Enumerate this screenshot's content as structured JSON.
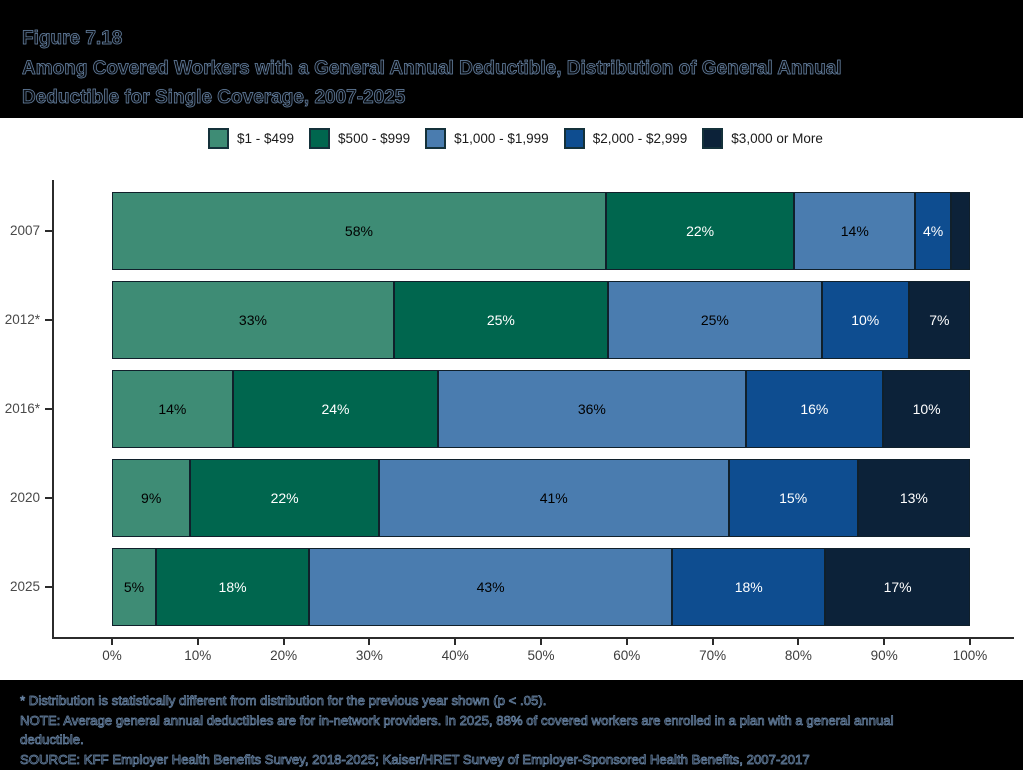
{
  "header": {
    "figure_label": "Figure 7.18",
    "title_lines": [
      "Among Covered Workers with a General Annual Deductible, Distribution of General Annual",
      "Deductible for Single Coverage, 2007-2025"
    ]
  },
  "legend": {
    "items": [
      {
        "label": "$1 - $499",
        "color": "#3E8C75"
      },
      {
        "label": "$500 - $999",
        "color": "#00664E"
      },
      {
        "label": "$1,000 - $1,999",
        "color": "#4A7CAF"
      },
      {
        "label": "$2,000 - $2,999",
        "color": "#0E4D90"
      },
      {
        "label": "$3,000 or More",
        "color": "#0C2239"
      }
    ]
  },
  "chart_data": {
    "type": "bar",
    "orientation": "horizontal",
    "stacked": true,
    "title": "Among Covered Workers with a General Annual Deductible, Distribution of General Annual Deductible for Single Coverage, 2007-2025",
    "categories": [
      "2007",
      "2012*",
      "2016*",
      "2020",
      "2025"
    ],
    "series": [
      {
        "name": "$1 - $499",
        "color": "#3E8C75",
        "label_color": "#000000",
        "values": [
          58,
          33,
          14,
          9,
          5
        ]
      },
      {
        "name": "$500 - $999",
        "color": "#00664E",
        "label_color": "#ffffff",
        "values": [
          22,
          25,
          24,
          22,
          18
        ]
      },
      {
        "name": "$1,000 - $1,999",
        "color": "#4A7CAF",
        "label_color": "#000000",
        "values": [
          14,
          25,
          36,
          41,
          43
        ]
      },
      {
        "name": "$2,000 - $2,999",
        "color": "#0E4D90",
        "label_color": "#ffffff",
        "values": [
          4,
          10,
          16,
          15,
          18
        ]
      },
      {
        "name": "$3,000 or More",
        "color": "#0C2239",
        "label_color": "#ffffff",
        "values": [
          2,
          7,
          10,
          13,
          17
        ]
      }
    ],
    "bar_labels": [
      [
        "58%",
        "22%",
        "14%",
        "4%",
        ""
      ],
      [
        "33%",
        "25%",
        "25%",
        "10%",
        "7%"
      ],
      [
        "14%",
        "24%",
        "36%",
        "16%",
        "10%"
      ],
      [
        "9%",
        "22%",
        "41%",
        "15%",
        "13%"
      ],
      [
        "5%",
        "18%",
        "43%",
        "18%",
        "17%"
      ]
    ],
    "xticks": [
      "0%",
      "10%",
      "20%",
      "30%",
      "40%",
      "50%",
      "60%",
      "70%",
      "80%",
      "90%",
      "100%"
    ],
    "xlim": [
      0,
      100
    ],
    "legend_position": "top",
    "grid": false
  },
  "footnotes": [
    "* Distribution is statistically different from distribution for the previous year shown (p < .05).",
    "NOTE: Average general annual deductibles are for in-network providers. In 2025, 88% of covered workers are enrolled in a plan with a general annual",
    "deductible.",
    "SOURCE: KFF Employer Health Benefits Survey, 2018-2025; Kaiser/HRET Survey of Employer-Sponsored Health Benefits, 2007-2017"
  ]
}
